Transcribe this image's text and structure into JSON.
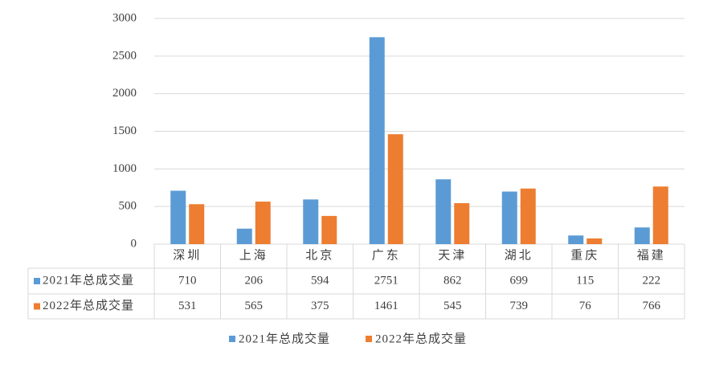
{
  "chart_data": {
    "type": "bar",
    "categories": [
      "深圳",
      "上海",
      "北京",
      "广东",
      "天津",
      "湖北",
      "重庆",
      "福建"
    ],
    "series": [
      {
        "name": "2021年总成交量",
        "color": "#5b9bd5",
        "values": [
          710,
          206,
          594,
          2751,
          862,
          699,
          115,
          222
        ]
      },
      {
        "name": "2022年总成交量",
        "color": "#ed7d31",
        "values": [
          531,
          565,
          375,
          1461,
          545,
          739,
          76,
          766
        ]
      }
    ],
    "ylim": [
      0,
      3000
    ],
    "yticks": [
      0,
      500,
      1000,
      1500,
      2000,
      2500,
      3000
    ],
    "grid": true,
    "legend": "bottom",
    "data_table": true
  }
}
